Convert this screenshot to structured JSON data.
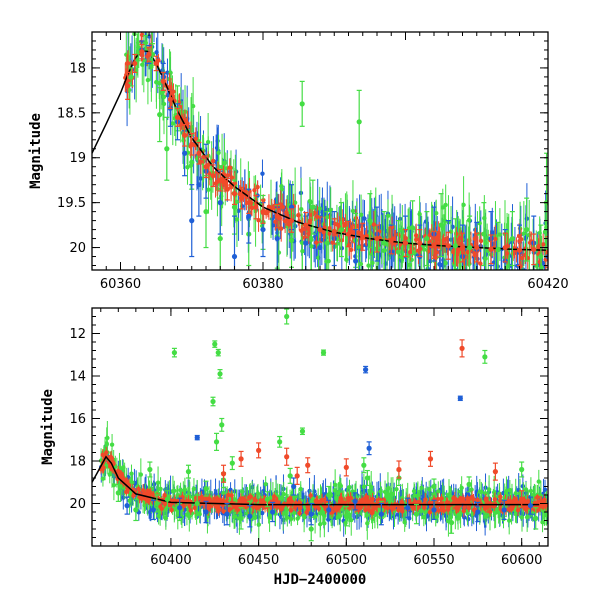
{
  "colors": {
    "green": "#44dd44",
    "blue": "#1f5fd6",
    "red": "#f04a2a",
    "model": "#000000"
  },
  "chart_data": [
    {
      "type": "scatter",
      "panel": "top",
      "xlabel": "",
      "ylabel": "Magnitude",
      "xlim": [
        60356,
        60420
      ],
      "ylim": [
        20.25,
        17.6
      ],
      "y_inverted": true,
      "grid": false,
      "xticks": [
        60360,
        60380,
        60400,
        60420
      ],
      "yticks": [
        18,
        18.5,
        19,
        19.5,
        20
      ],
      "xtick_labels": [
        "60360",
        "60380",
        "60400",
        "60420"
      ],
      "ytick_labels": [
        "18",
        "18.5",
        "19",
        "19.5",
        "20"
      ],
      "model_curve": {
        "x": [
          60356,
          60358,
          60360,
          60361,
          60362,
          60363,
          60364,
          60365,
          60366,
          60368,
          60370,
          60373,
          60376,
          60380,
          60385,
          60390,
          60395,
          60400,
          60405,
          60410,
          60415,
          60420
        ],
        "y": [
          18.95,
          18.62,
          18.28,
          18.08,
          17.9,
          17.8,
          17.82,
          17.95,
          18.12,
          18.48,
          18.78,
          19.1,
          19.32,
          19.55,
          19.72,
          19.83,
          19.9,
          19.95,
          19.98,
          20.0,
          20.02,
          20.03
        ]
      },
      "series": [
        {
          "color": "green",
          "x": [
            60361.5,
            60362.5,
            60363.5,
            60364.5,
            60365.5,
            60366.5,
            60368,
            60370,
            60372,
            60374,
            60376,
            60378,
            60380,
            60382,
            60384,
            60385.5,
            60387,
            60389,
            60391,
            60393,
            60393.5,
            60395,
            60397,
            60399,
            60401,
            60403,
            60405,
            60407,
            60409,
            60411,
            60413,
            60415,
            60417,
            60419,
            60419.8
          ],
          "y": [
            18.1,
            17.82,
            17.72,
            17.85,
            18.52,
            18.9,
            18.45,
            19.05,
            19.6,
            19.9,
            19.55,
            19.85,
            19.72,
            19.88,
            19.92,
            18.4,
            19.55,
            19.95,
            19.8,
            19.92,
            18.6,
            19.7,
            19.95,
            20.05,
            19.78,
            19.9,
            19.75,
            19.98,
            20.0,
            19.85,
            20.02,
            19.9,
            19.8,
            20.1,
            19.5
          ],
          "err": [
            0.1,
            0.1,
            0.08,
            0.12,
            0.3,
            0.35,
            0.25,
            0.3,
            0.4,
            0.45,
            0.3,
            0.35,
            0.3,
            0.35,
            0.3,
            0.25,
            0.3,
            0.35,
            0.3,
            0.3,
            0.35,
            0.3,
            0.35,
            0.35,
            0.3,
            0.3,
            0.35,
            0.3,
            0.35,
            0.35,
            0.3,
            0.3,
            0.35,
            0.35,
            0.55
          ]
        },
        {
          "color": "blue",
          "x": [
            60363,
            60364,
            60366,
            60367,
            60368,
            60369,
            60370,
            60371,
            60372,
            60374,
            60376,
            60378,
            60380,
            60382,
            60384,
            60386,
            60388,
            60390,
            60393,
            60396,
            60398,
            60400,
            60402,
            60404,
            60406,
            60408,
            60410,
            60412,
            60414,
            60416,
            60418,
            60420
          ],
          "y": [
            17.8,
            17.85,
            18.1,
            18.45,
            18.6,
            18.95,
            19.7,
            19.3,
            19.15,
            19.5,
            20.1,
            19.65,
            19.8,
            19.9,
            19.55,
            19.95,
            20.0,
            19.9,
            20.15,
            19.85,
            20.05,
            19.95,
            20.1,
            19.85,
            20.0,
            20.1,
            20.02,
            19.9,
            20.15,
            20.05,
            19.95,
            20.1
          ],
          "err": [
            0.1,
            0.1,
            0.15,
            0.2,
            0.2,
            0.25,
            0.4,
            0.35,
            0.3,
            0.35,
            0.45,
            0.3,
            0.3,
            0.35,
            0.25,
            0.3,
            0.3,
            0.3,
            0.35,
            0.3,
            0.3,
            0.3,
            0.35,
            0.3,
            0.3,
            0.35,
            0.3,
            0.3,
            0.35,
            0.3,
            0.3,
            0.3
          ]
        },
        {
          "color": "red",
          "x": [
            60361,
            60362,
            60363,
            60364,
            60365,
            60366,
            60367,
            60368,
            60369,
            60370,
            60371,
            60372,
            60373,
            60374,
            60375,
            60376,
            60377,
            60378,
            60379,
            60380,
            60382,
            60384,
            60386,
            60388,
            60390,
            60392,
            60394,
            60396,
            60398,
            60400,
            60402,
            60404,
            60406,
            60408,
            60410,
            60412,
            60414,
            60416,
            60418,
            60420
          ],
          "y": [
            18.2,
            17.95,
            17.82,
            17.85,
            17.95,
            18.15,
            18.35,
            18.55,
            18.75,
            18.85,
            18.95,
            19.1,
            19.2,
            19.25,
            19.35,
            19.4,
            19.45,
            19.5,
            19.55,
            19.6,
            19.65,
            19.7,
            19.75,
            19.8,
            19.82,
            19.85,
            19.88,
            19.9,
            19.92,
            19.95,
            19.95,
            19.97,
            19.98,
            20.0,
            20.0,
            20.02,
            20.0,
            20.03,
            20.02,
            20.05
          ],
          "err": [
            0.15,
            0.1,
            0.08,
            0.08,
            0.08,
            0.1,
            0.1,
            0.1,
            0.12,
            0.12,
            0.12,
            0.12,
            0.12,
            0.12,
            0.12,
            0.12,
            0.12,
            0.12,
            0.13,
            0.13,
            0.13,
            0.13,
            0.14,
            0.14,
            0.14,
            0.14,
            0.15,
            0.15,
            0.15,
            0.15,
            0.15,
            0.15,
            0.15,
            0.16,
            0.16,
            0.16,
            0.16,
            0.17,
            0.17,
            0.17
          ]
        }
      ]
    },
    {
      "type": "scatter",
      "panel": "bottom",
      "xlabel": "HJD−2400000",
      "ylabel": "Magnitude",
      "xlim": [
        60355,
        60615
      ],
      "ylim": [
        22,
        10.8
      ],
      "y_inverted": true,
      "grid": false,
      "xticks": [
        60400,
        60450,
        60500,
        60550,
        60600
      ],
      "yticks": [
        12,
        14,
        16,
        18,
        20
      ],
      "xtick_labels": [
        "60400",
        "60450",
        "60500",
        "60550",
        "60600"
      ],
      "ytick_labels": [
        "12",
        "14",
        "16",
        "18",
        "20"
      ],
      "model_curve": {
        "x": [
          60355,
          60358,
          60361,
          60363,
          60366,
          60370,
          60380,
          60400,
          60450,
          60500,
          60550,
          60600,
          60610
        ],
        "y": [
          19.0,
          18.55,
          18.1,
          17.8,
          18.1,
          18.8,
          19.55,
          19.95,
          20.05,
          20.05,
          20.05,
          20.05,
          20.05
        ]
      },
      "series": [
        {
          "color": "green",
          "x": [
            60370,
            60380,
            60388,
            60392,
            60398,
            60402,
            60405,
            60410,
            60415,
            60420,
            60424,
            60425,
            60426,
            60427,
            60428,
            60429,
            60430,
            60435,
            60440,
            60445,
            60455,
            60462,
            60466,
            60468,
            60475,
            60480,
            60487,
            60490,
            60500,
            60510,
            60512,
            60520,
            60530,
            60540,
            60550,
            60560,
            60570,
            60579,
            60590,
            60600,
            60608
          ],
          "y": [
            19.5,
            20.3,
            18.4,
            20.0,
            19.8,
            12.9,
            20.4,
            18.5,
            20.0,
            19.3,
            15.2,
            12.5,
            17.1,
            12.9,
            13.9,
            16.3,
            18.9,
            18.1,
            20.7,
            20.3,
            19.8,
            17.1,
            11.2,
            18.7,
            16.6,
            21.2,
            12.9,
            19.6,
            20.6,
            18.2,
            18.8,
            20.3,
            18.8,
            20.5,
            19.2,
            20.9,
            19.1,
            13.1,
            20.2,
            18.4,
            20.7
          ],
          "err": [
            0.4,
            0.5,
            0.35,
            0.4,
            0.4,
            0.2,
            0.4,
            0.3,
            0.4,
            0.35,
            0.2,
            0.15,
            0.4,
            0.15,
            0.2,
            0.3,
            0.35,
            0.3,
            0.5,
            0.4,
            0.35,
            0.25,
            0.35,
            0.35,
            0.15,
            0.55,
            0.12,
            0.4,
            0.45,
            0.35,
            0.35,
            0.4,
            0.35,
            0.45,
            0.35,
            0.5,
            0.35,
            0.3,
            0.4,
            0.35,
            0.5
          ]
        },
        {
          "color": "blue",
          "x": [
            60375,
            60390,
            60405,
            60415,
            60420,
            60432,
            60445,
            60458,
            60470,
            60480,
            60490,
            60505,
            60511,
            60513,
            60520,
            60535,
            60550,
            60565,
            60575,
            60590,
            60605
          ],
          "y": [
            20.1,
            20.3,
            20.2,
            16.9,
            20.4,
            20.5,
            20.6,
            20.4,
            19.2,
            20.5,
            20.3,
            19.9,
            13.7,
            17.4,
            20.5,
            20.2,
            20.3,
            15.05,
            20.4,
            20.3,
            20.1
          ],
          "err": [
            0.4,
            0.45,
            0.45,
            0.1,
            0.5,
            0.5,
            0.5,
            0.45,
            0.4,
            0.5,
            0.45,
            0.4,
            0.15,
            0.3,
            0.5,
            0.45,
            0.45,
            0.1,
            0.45,
            0.45,
            0.4
          ]
        },
        {
          "color": "red",
          "x": [
            60430,
            60440,
            60450,
            60466,
            60472,
            60478,
            60500,
            60530,
            60548,
            60566,
            60585,
            60600
          ],
          "y": [
            18.6,
            17.9,
            17.5,
            17.8,
            18.7,
            18.2,
            18.3,
            18.4,
            17.9,
            12.7,
            18.5,
            19.8
          ],
          "err": [
            0.4,
            0.35,
            0.35,
            0.4,
            0.4,
            0.35,
            0.4,
            0.4,
            0.35,
            0.4,
            0.4,
            0.4
          ]
        }
      ]
    }
  ]
}
